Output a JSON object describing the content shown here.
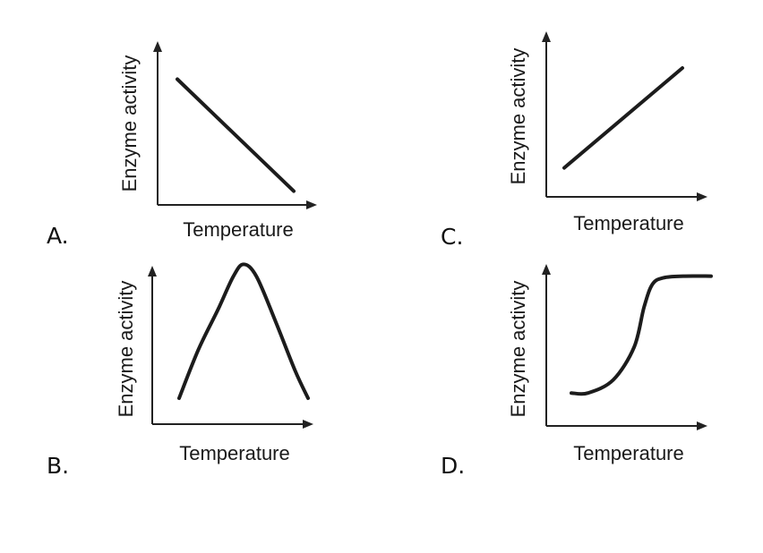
{
  "chart_data": [
    {
      "option": "A.",
      "type": "line",
      "xlabel": "Temperature",
      "ylabel": "Enzyme activity",
      "shape": "decreasing linear",
      "x": [
        0,
        1
      ],
      "y": [
        0.78,
        0.1
      ]
    },
    {
      "option": "B.",
      "type": "line",
      "xlabel": "Temperature",
      "ylabel": "Enzyme activity",
      "shape": "rise to a peak then fall",
      "x": [
        0,
        0.15,
        0.3,
        0.42,
        0.5,
        0.6,
        0.75,
        0.9,
        1
      ],
      "y": [
        0.1,
        0.42,
        0.68,
        0.9,
        0.98,
        0.9,
        0.6,
        0.28,
        0.1
      ]
    },
    {
      "option": "C.",
      "type": "line",
      "xlabel": "Temperature",
      "ylabel": "Enzyme activity",
      "shape": "increasing linear",
      "x": [
        0,
        1
      ],
      "y": [
        0.18,
        0.8
      ]
    },
    {
      "option": "D.",
      "type": "line",
      "xlabel": "Temperature",
      "ylabel": "Enzyme activity",
      "shape": "sigmoidal increase then plateau",
      "x": [
        0,
        0.12,
        0.3,
        0.45,
        0.52,
        0.58,
        0.66,
        0.8,
        1
      ],
      "y": [
        0.2,
        0.2,
        0.28,
        0.48,
        0.72,
        0.86,
        0.9,
        0.91,
        0.91
      ]
    }
  ],
  "colors": {
    "line": "#1c1c1c",
    "axis": "#222222",
    "background": "#ffffff"
  }
}
